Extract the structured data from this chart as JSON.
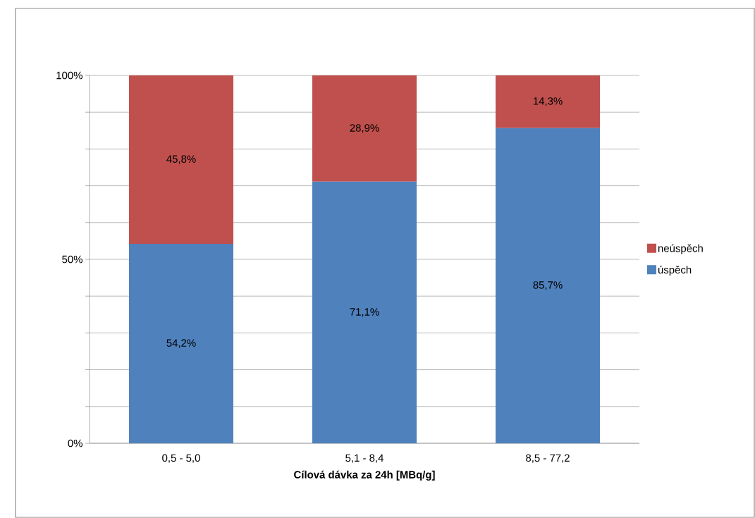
{
  "chart_data": {
    "type": "bar",
    "stacked": true,
    "xlabel": "Cílová dávka za 24h [MBq/g]",
    "categories": [
      "0,5 - 5,0",
      "5,1 - 8,4",
      "8,5 - 77,2"
    ],
    "series": [
      {
        "name": "úspěch",
        "color": "#4f81bd",
        "values": [
          54.2,
          71.1,
          85.7
        ],
        "value_labels": [
          "54,2%",
          "71,1%",
          "85,7%"
        ]
      },
      {
        "name": "neúspěch",
        "color": "#c0504d",
        "values": [
          45.8,
          28.9,
          14.3
        ],
        "value_labels": [
          "45,8%",
          "28,9%",
          "14,3%"
        ]
      }
    ],
    "ylim": [
      0,
      100
    ],
    "yticks": [
      {
        "value": 0,
        "label": "0%"
      },
      {
        "value": 10,
        "label": null
      },
      {
        "value": 20,
        "label": null
      },
      {
        "value": 30,
        "label": null
      },
      {
        "value": 40,
        "label": null
      },
      {
        "value": 50,
        "label": "50%"
      },
      {
        "value": 60,
        "label": null
      },
      {
        "value": 70,
        "label": null
      },
      {
        "value": 80,
        "label": null
      },
      {
        "value": 90,
        "label": null
      },
      {
        "value": 100,
        "label": "100%"
      }
    ],
    "grid": "y",
    "legend": "right"
  }
}
